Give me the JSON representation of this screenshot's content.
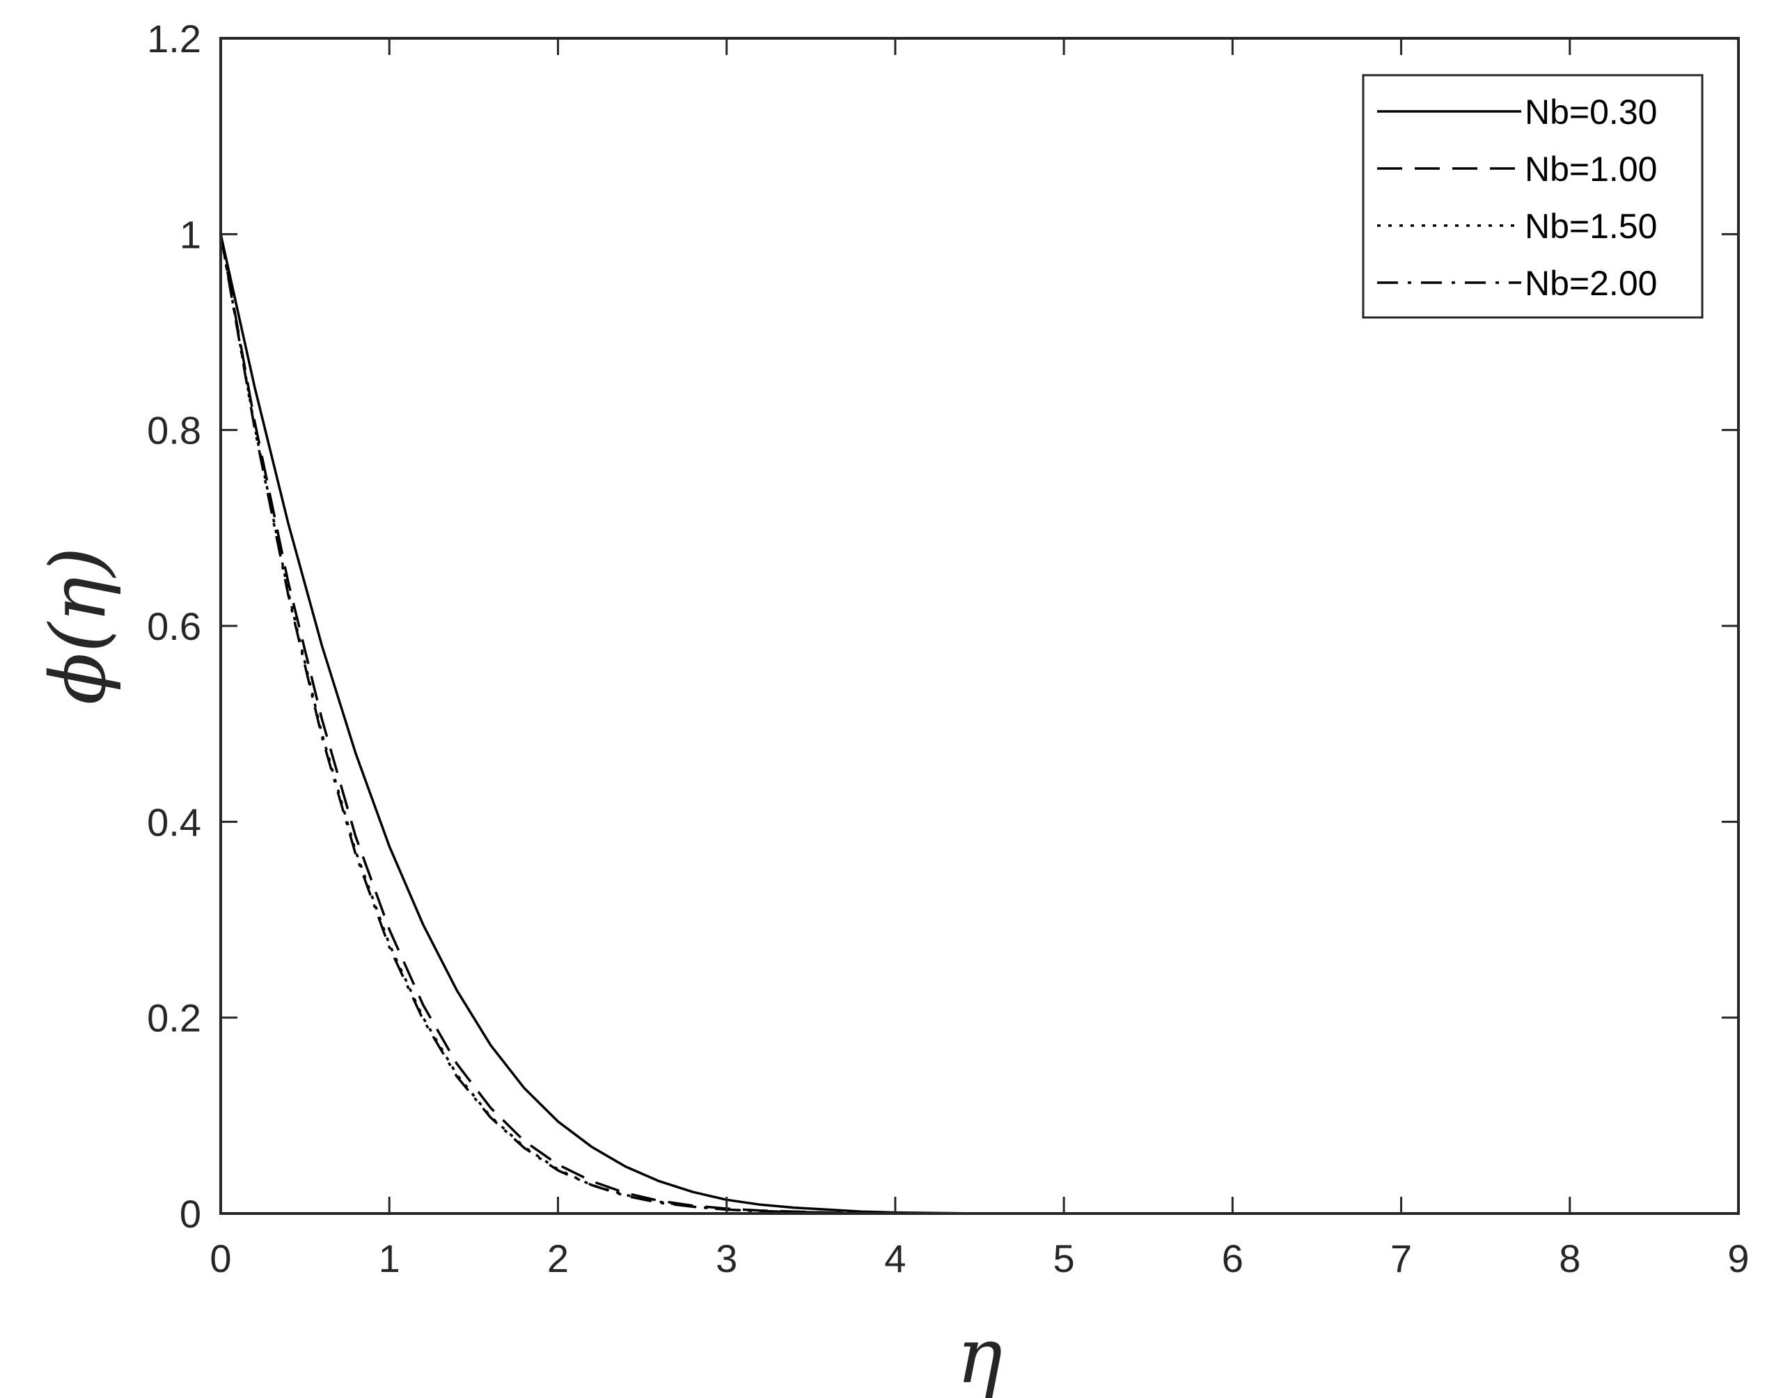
{
  "chart_data": {
    "type": "line",
    "xlabel": "η",
    "ylabel": "ϕ(η)",
    "xlim": [
      0,
      9
    ],
    "ylim": [
      0,
      1.2
    ],
    "xticks": [
      "0",
      "1",
      "2",
      "3",
      "4",
      "5",
      "6",
      "7",
      "8",
      "9"
    ],
    "yticks": [
      "0",
      "0.2",
      "0.4",
      "0.6",
      "0.8",
      "1",
      "1.2"
    ],
    "grid": false,
    "legend": "top-right",
    "x": [
      0,
      0.2,
      0.4,
      0.6,
      0.8,
      1.0,
      1.2,
      1.4,
      1.6,
      1.8,
      2.0,
      2.2,
      2.4,
      2.6,
      2.8,
      3.0,
      3.2,
      3.4,
      3.6,
      3.8,
      4.0,
      4.5,
      5,
      6,
      7,
      8,
      9
    ],
    "series": [
      {
        "name": "Nb=0.30",
        "style": "solid",
        "values": [
          1.0,
          0.845,
          0.705,
          0.58,
          0.47,
          0.375,
          0.295,
          0.228,
          0.172,
          0.128,
          0.094,
          0.068,
          0.048,
          0.033,
          0.022,
          0.014,
          0.009,
          0.006,
          0.004,
          0.002,
          0.001,
          0.0,
          0.0,
          0.0,
          0.0,
          0.0,
          0.0
        ]
      },
      {
        "name": "Nb=1.00",
        "style": "dashed",
        "values": [
          1.0,
          0.81,
          0.645,
          0.505,
          0.385,
          0.29,
          0.213,
          0.153,
          0.108,
          0.074,
          0.05,
          0.033,
          0.021,
          0.013,
          0.008,
          0.005,
          0.003,
          0.002,
          0.001,
          0.0,
          0.0,
          0.0,
          0.0,
          0.0,
          0.0,
          0.0,
          0.0
        ]
      },
      {
        "name": "Nb=1.50",
        "style": "dotted",
        "values": [
          1.0,
          0.805,
          0.635,
          0.49,
          0.37,
          0.275,
          0.2,
          0.142,
          0.099,
          0.068,
          0.045,
          0.029,
          0.019,
          0.012,
          0.007,
          0.004,
          0.0025,
          0.0015,
          0.001,
          0.0,
          0.0,
          0.0,
          0.0,
          0.0,
          0.0,
          0.0,
          0.0
        ]
      },
      {
        "name": "Nb=2.00",
        "style": "dashdot",
        "values": [
          1.0,
          0.803,
          0.632,
          0.487,
          0.367,
          0.272,
          0.198,
          0.14,
          0.098,
          0.067,
          0.044,
          0.029,
          0.018,
          0.011,
          0.007,
          0.004,
          0.0025,
          0.0015,
          0.001,
          0.0,
          0.0,
          0.0,
          0.0,
          0.0,
          0.0,
          0.0,
          0.0
        ]
      }
    ]
  }
}
